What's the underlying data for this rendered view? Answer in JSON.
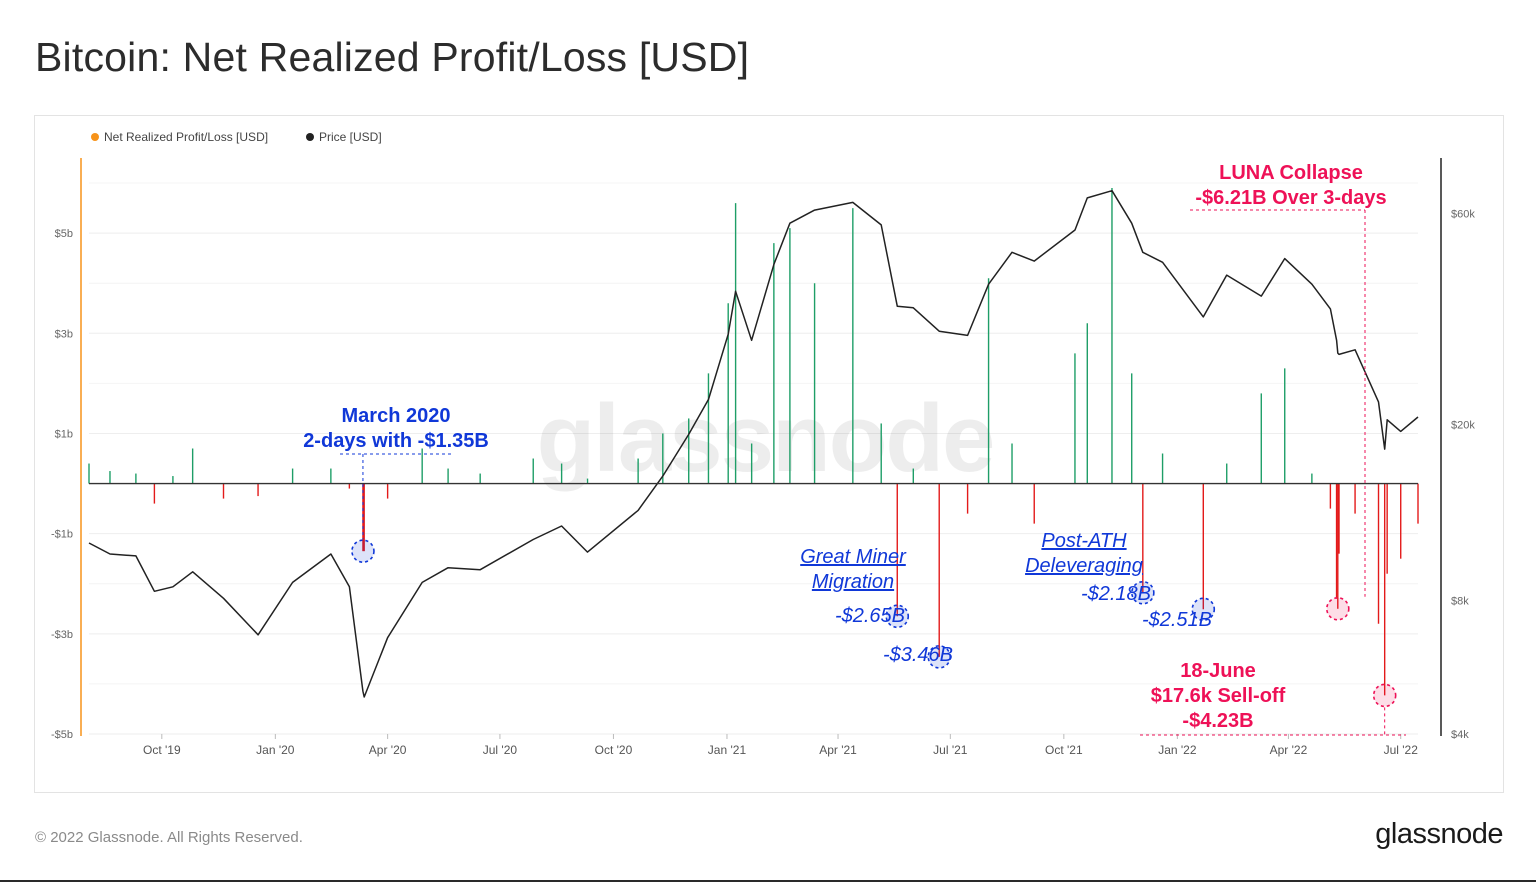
{
  "header": {
    "title": "Bitcoin: Net Realized Profit/Loss [USD]"
  },
  "footer": {
    "copyright": "© 2022 Glassnode. All Rights Reserved.",
    "logo_text": "glassnode"
  },
  "colors": {
    "profit": "#1e9e67",
    "loss": "#e31a1a",
    "price": "#222222",
    "left_axis": "#f7931a",
    "blue_annotation": "#1038d8",
    "pink_annotation": "#ee1157"
  },
  "chart_data": {
    "type": "line",
    "title": "Bitcoin: Net Realized Profit/Loss [USD]",
    "watermark": "glassnode",
    "legend": [
      "Net Realized Profit/Loss [USD]",
      "Price [USD]"
    ],
    "legend_position": "top-left",
    "grid": true,
    "x_range": [
      "2019-08-03",
      "2022-07-15"
    ],
    "x_ticks": [
      {
        "label": "Oct '19",
        "date": "2019-10-01"
      },
      {
        "label": "Jan '20",
        "date": "2020-01-01"
      },
      {
        "label": "Apr '20",
        "date": "2020-04-01"
      },
      {
        "label": "Jul '20",
        "date": "2020-07-01"
      },
      {
        "label": "Oct '20",
        "date": "2020-10-01"
      },
      {
        "label": "Jan '21",
        "date": "2021-01-01"
      },
      {
        "label": "Apr '21",
        "date": "2021-04-01"
      },
      {
        "label": "Jul '21",
        "date": "2021-07-01"
      },
      {
        "label": "Oct '21",
        "date": "2021-10-01"
      },
      {
        "label": "Jan '22",
        "date": "2022-01-01"
      },
      {
        "label": "Apr '22",
        "date": "2022-04-01"
      },
      {
        "label": "Jul '22",
        "date": "2022-07-01"
      }
    ],
    "left_axis": {
      "label": "Net Realized Profit/Loss [USD]",
      "range": [
        -5000000000,
        6500000000
      ],
      "ticks": [
        {
          "label": "$5b",
          "value": 5000000000
        },
        {
          "label": "$3b",
          "value": 3000000000
        },
        {
          "label": "$1b",
          "value": 1000000000
        },
        {
          "label": "-$1b",
          "value": -1000000000
        },
        {
          "label": "-$3b",
          "value": -3000000000
        },
        {
          "label": "-$5b",
          "value": -5000000000
        }
      ]
    },
    "right_axis": {
      "label": "Price [USD]",
      "scale": "log",
      "range": [
        4000,
        80000
      ],
      "ticks": [
        {
          "label": "$60k",
          "value": 60000
        },
        {
          "label": "$20k",
          "value": 20000
        },
        {
          "label": "$8k",
          "value": 8000
        },
        {
          "label": "$4k",
          "value": 4000
        }
      ]
    },
    "series": [
      {
        "name": "Net Realized Profit/Loss [USD]",
        "axis": "left",
        "unit": "USD billions",
        "points": [
          [
            "2019-08-03",
            0.4
          ],
          [
            "2019-08-20",
            0.25
          ],
          [
            "2019-09-10",
            0.2
          ],
          [
            "2019-09-25",
            -0.4
          ],
          [
            "2019-10-10",
            0.15
          ],
          [
            "2019-10-26",
            0.7
          ],
          [
            "2019-11-20",
            -0.3
          ],
          [
            "2019-12-18",
            -0.25
          ],
          [
            "2020-01-15",
            0.3
          ],
          [
            "2020-02-15",
            0.3
          ],
          [
            "2020-03-01",
            -0.1
          ],
          [
            "2020-03-12",
            -1.35
          ],
          [
            "2020-03-13",
            -1.35
          ],
          [
            "2020-04-01",
            -0.3
          ],
          [
            "2020-04-29",
            0.7
          ],
          [
            "2020-05-20",
            0.3
          ],
          [
            "2020-06-15",
            0.2
          ],
          [
            "2020-07-28",
            0.5
          ],
          [
            "2020-08-20",
            0.4
          ],
          [
            "2020-09-10",
            0.1
          ],
          [
            "2020-10-21",
            0.5
          ],
          [
            "2020-11-10",
            1.0
          ],
          [
            "2020-12-01",
            1.3
          ],
          [
            "2020-12-17",
            2.2
          ],
          [
            "2021-01-02",
            3.6
          ],
          [
            "2021-01-08",
            5.6
          ],
          [
            "2021-01-21",
            0.8
          ],
          [
            "2021-02-08",
            4.8
          ],
          [
            "2021-02-21",
            5.1
          ],
          [
            "2021-03-13",
            4.0
          ],
          [
            "2021-04-13",
            5.5
          ],
          [
            "2021-05-06",
            1.2
          ],
          [
            "2021-05-19",
            -2.65
          ],
          [
            "2021-06-01",
            0.3
          ],
          [
            "2021-06-22",
            -3.46
          ],
          [
            "2021-07-15",
            -0.6
          ],
          [
            "2021-08-01",
            4.1
          ],
          [
            "2021-08-20",
            0.8
          ],
          [
            "2021-09-07",
            -0.8
          ],
          [
            "2021-10-10",
            2.6
          ],
          [
            "2021-10-20",
            3.2
          ],
          [
            "2021-11-09",
            5.9
          ],
          [
            "2021-11-25",
            2.2
          ],
          [
            "2021-12-04",
            -2.18
          ],
          [
            "2021-12-20",
            0.6
          ],
          [
            "2022-01-22",
            -2.51
          ],
          [
            "2022-02-10",
            0.4
          ],
          [
            "2022-03-10",
            1.8
          ],
          [
            "2022-03-29",
            2.3
          ],
          [
            "2022-04-20",
            0.2
          ],
          [
            "2022-05-05",
            -0.5
          ],
          [
            "2022-05-10",
            -2.3
          ],
          [
            "2022-05-11",
            -2.5
          ],
          [
            "2022-05-12",
            -1.4
          ],
          [
            "2022-05-25",
            -0.6
          ],
          [
            "2022-06-13",
            -2.8
          ],
          [
            "2022-06-18",
            -4.23
          ],
          [
            "2022-06-20",
            -1.8
          ],
          [
            "2022-07-01",
            -1.5
          ],
          [
            "2022-07-15",
            -0.8
          ]
        ]
      },
      {
        "name": "Price [USD]",
        "axis": "right",
        "unit": "USD",
        "points": [
          [
            "2019-08-03",
            10800
          ],
          [
            "2019-08-20",
            10200
          ],
          [
            "2019-09-10",
            10100
          ],
          [
            "2019-09-25",
            8400
          ],
          [
            "2019-10-10",
            8600
          ],
          [
            "2019-10-26",
            9300
          ],
          [
            "2019-11-20",
            8100
          ],
          [
            "2019-12-18",
            6700
          ],
          [
            "2020-01-15",
            8800
          ],
          [
            "2020-02-15",
            10200
          ],
          [
            "2020-03-01",
            8600
          ],
          [
            "2020-03-12",
            5000
          ],
          [
            "2020-03-13",
            4850
          ],
          [
            "2020-04-01",
            6600
          ],
          [
            "2020-04-29",
            8800
          ],
          [
            "2020-05-20",
            9500
          ],
          [
            "2020-06-15",
            9400
          ],
          [
            "2020-07-28",
            11000
          ],
          [
            "2020-08-20",
            11800
          ],
          [
            "2020-09-10",
            10300
          ],
          [
            "2020-10-21",
            12800
          ],
          [
            "2020-11-10",
            15300
          ],
          [
            "2020-12-01",
            19000
          ],
          [
            "2020-12-17",
            22800
          ],
          [
            "2021-01-02",
            32000
          ],
          [
            "2021-01-08",
            40000
          ],
          [
            "2021-01-21",
            31000
          ],
          [
            "2021-02-08",
            46000
          ],
          [
            "2021-02-21",
            57000
          ],
          [
            "2021-03-13",
            61000
          ],
          [
            "2021-04-13",
            63500
          ],
          [
            "2021-05-06",
            56500
          ],
          [
            "2021-05-19",
            37000
          ],
          [
            "2021-06-01",
            36700
          ],
          [
            "2021-06-22",
            32500
          ],
          [
            "2021-07-15",
            31800
          ],
          [
            "2021-08-01",
            41500
          ],
          [
            "2021-08-20",
            49000
          ],
          [
            "2021-09-07",
            46800
          ],
          [
            "2021-10-10",
            55000
          ],
          [
            "2021-10-20",
            65000
          ],
          [
            "2021-11-09",
            67500
          ],
          [
            "2021-11-25",
            57000
          ],
          [
            "2021-12-04",
            49000
          ],
          [
            "2021-12-20",
            46500
          ],
          [
            "2022-01-22",
            35000
          ],
          [
            "2022-02-10",
            43500
          ],
          [
            "2022-03-10",
            39000
          ],
          [
            "2022-03-29",
            47400
          ],
          [
            "2022-04-20",
            41500
          ],
          [
            "2022-05-05",
            36500
          ],
          [
            "2022-05-10",
            31000
          ],
          [
            "2022-05-11",
            29000
          ],
          [
            "2022-05-12",
            28800
          ],
          [
            "2022-05-25",
            29500
          ],
          [
            "2022-06-13",
            22500
          ],
          [
            "2022-06-18",
            17600
          ],
          [
            "2022-06-20",
            20500
          ],
          [
            "2022-07-01",
            19300
          ],
          [
            "2022-07-15",
            20800
          ]
        ]
      }
    ],
    "annotations": [
      {
        "lines": [
          "March 2020",
          "2-days with -$1.35B"
        ],
        "color": "blue",
        "date": "2020-03-12",
        "value_b": -1.35
      },
      {
        "lines": [
          "Great Miner",
          "Migration"
        ],
        "color": "blue",
        "italic": true,
        "underline": true,
        "date": "2021-05-19"
      },
      {
        "lines": [
          "-$2.65B"
        ],
        "color": "blue",
        "italic": true,
        "date": "2021-05-19",
        "value_b": -2.65
      },
      {
        "lines": [
          "-$3.46B"
        ],
        "color": "blue",
        "italic": true,
        "date": "2021-06-22",
        "value_b": -3.46
      },
      {
        "lines": [
          "Post-ATH",
          "Deleveraging"
        ],
        "color": "blue",
        "italic": true,
        "underline": true,
        "date": "2021-12-04"
      },
      {
        "lines": [
          "-$2.18B"
        ],
        "color": "blue",
        "italic": true,
        "date": "2021-12-04",
        "value_b": -2.18
      },
      {
        "lines": [
          "-$2.51B"
        ],
        "color": "blue",
        "italic": true,
        "date": "2022-01-22",
        "value_b": -2.51
      },
      {
        "lines": [
          "LUNA Collapse",
          "-$6.21B Over 3-days"
        ],
        "color": "pink",
        "date": "2022-05-11",
        "value_b": -2.5
      },
      {
        "lines": [
          "18-June",
          "$17.6k Sell-off",
          "-$4.23B"
        ],
        "color": "pink",
        "date": "2022-06-18",
        "value_b": -4.23
      }
    ]
  }
}
